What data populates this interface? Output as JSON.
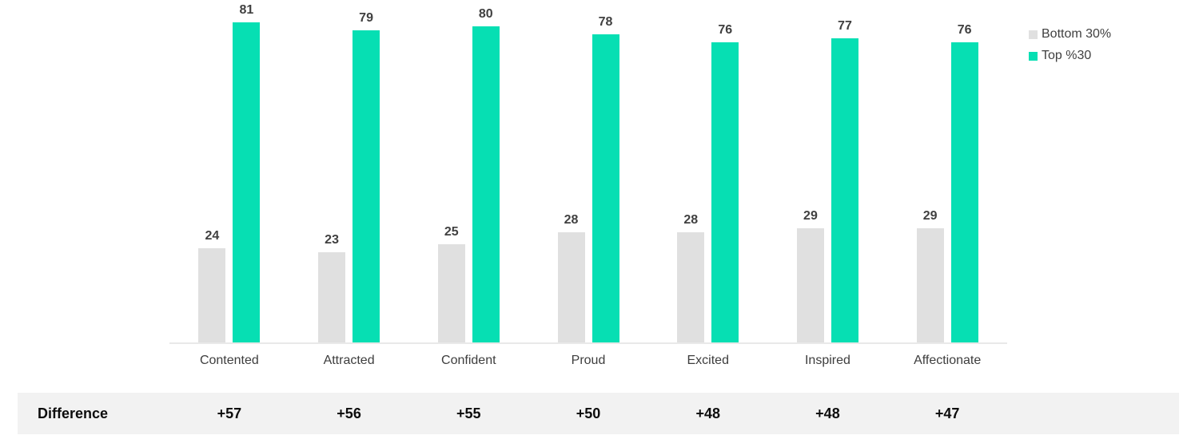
{
  "chart_data": {
    "type": "bar",
    "categories": [
      "Contented",
      "Attracted",
      "Confident",
      "Proud",
      "Excited",
      "Inspired",
      "Affectionate"
    ],
    "series": [
      {
        "name": "Bottom 30%",
        "color": "#e0e0e0",
        "values": [
          24,
          23,
          25,
          28,
          28,
          29,
          29
        ]
      },
      {
        "name": "Top %30",
        "color": "#06dfb3",
        "values": [
          81,
          79,
          80,
          78,
          76,
          77,
          76
        ]
      }
    ],
    "difference_label": "Difference",
    "differences": [
      "+57",
      "+56",
      "+55",
      "+50",
      "+48",
      "+48",
      "+47"
    ],
    "title": "",
    "xlabel": "",
    "ylabel": "",
    "ylim": [
      0,
      86.7
    ],
    "grid": false,
    "legend_position": "top-right",
    "value_labels_shown": true
  },
  "legend": {
    "bottom_swatch_color": "#e0e0e0",
    "top_swatch_color": "#06dfb3"
  },
  "colors": {
    "value_label": "#404040",
    "category_label": "#3d3d3d",
    "axis_line": "#e9e9e9",
    "difference_band_bg": "#f2f2f2",
    "difference_text": "#0d0d0d"
  }
}
